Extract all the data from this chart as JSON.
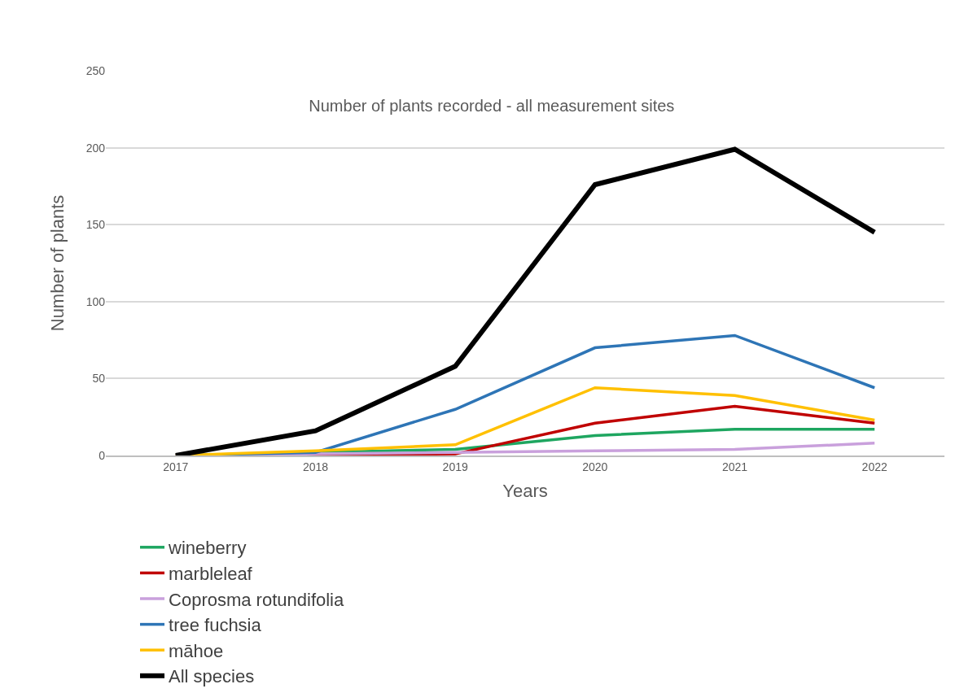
{
  "chart_data": {
    "type": "line",
    "title": "Number of plants recorded - all measurement sites",
    "xlabel": "Years",
    "ylabel": "Number of plants",
    "categories": [
      "2017",
      "2018",
      "2019",
      "2020",
      "2021",
      "2022"
    ],
    "series": [
      {
        "name": "wineberry",
        "color": "#1ea660",
        "values": [
          0,
          2,
          4,
          13,
          17,
          17
        ]
      },
      {
        "name": "marbleleaf",
        "color": "#c00000",
        "values": [
          0,
          null,
          1,
          21,
          32,
          21
        ]
      },
      {
        "name": "Coprosma rotundifolia",
        "color": "#c9a0dc",
        "values": [
          0,
          1,
          2,
          3,
          4,
          8
        ]
      },
      {
        "name": "tree fuchsia",
        "color": "#2e75b6",
        "values": [
          0,
          2,
          30,
          70,
          78,
          44
        ]
      },
      {
        "name": "māhoe",
        "color": "#ffc000",
        "values": [
          0,
          3,
          7,
          44,
          39,
          23
        ]
      },
      {
        "name": "All species",
        "color": "#000000",
        "values": [
          0,
          16,
          58,
          176,
          199,
          145
        ]
      }
    ],
    "ylim": [
      0,
      250
    ],
    "yticks": [
      0,
      50,
      100,
      150,
      200,
      250
    ],
    "grid": "y",
    "legend": "bottom",
    "marker": "none",
    "line_style": "solid"
  }
}
